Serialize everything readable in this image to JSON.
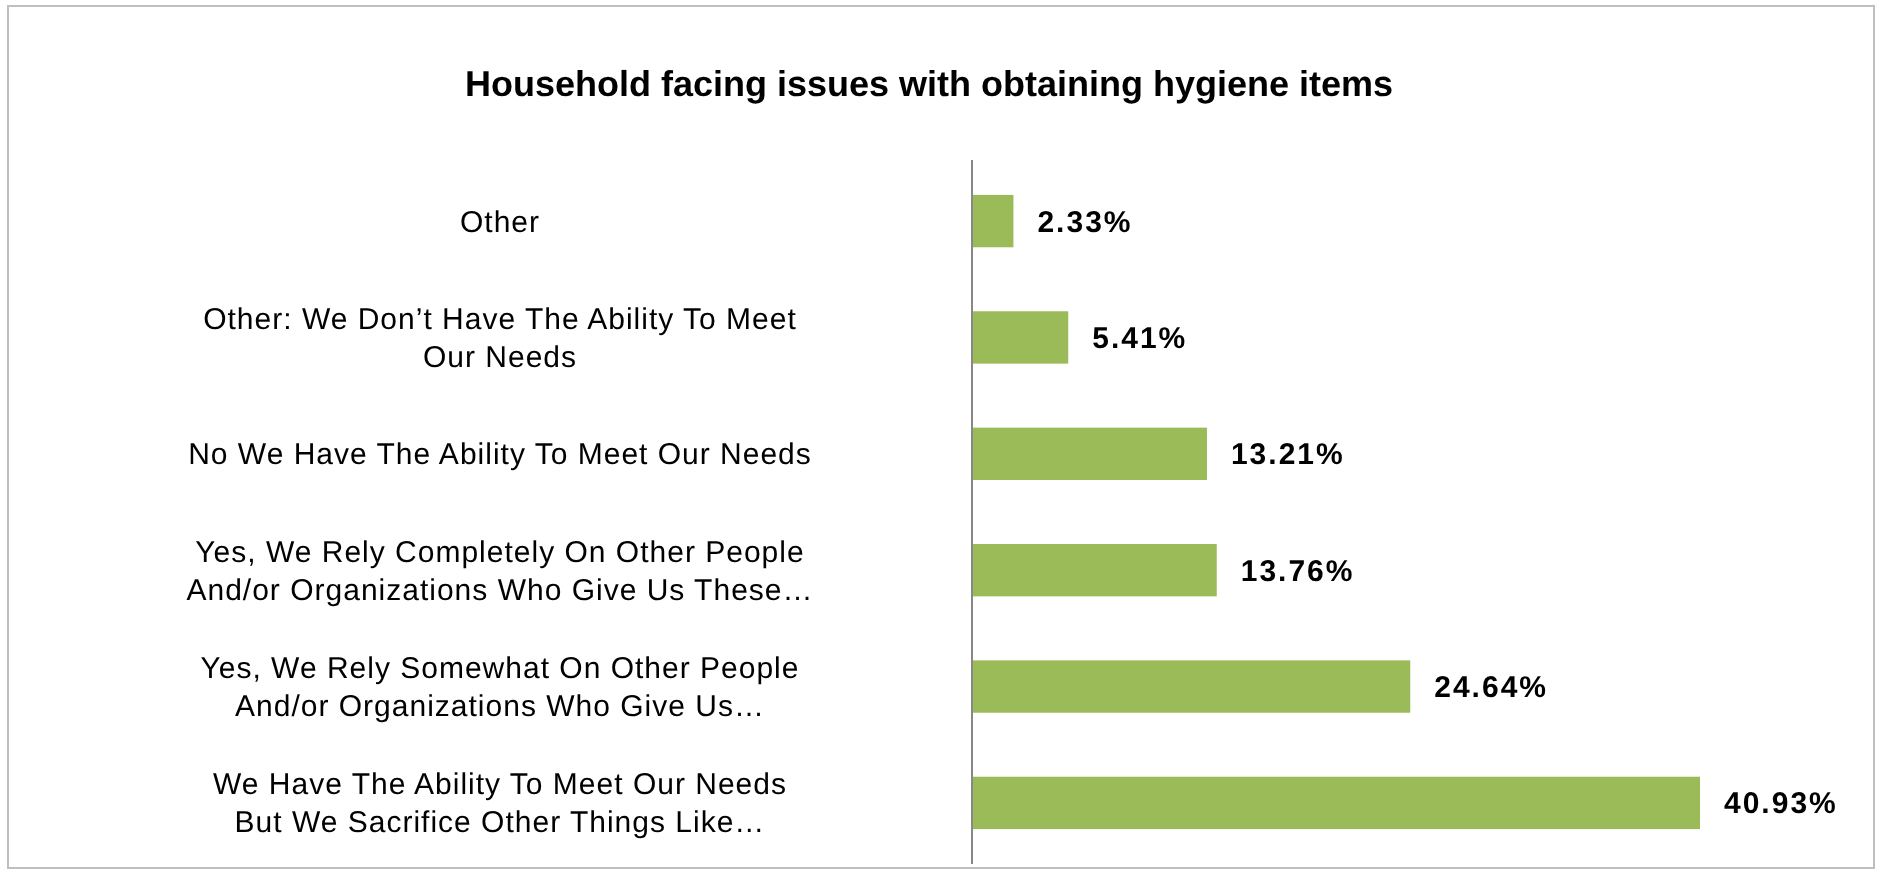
{
  "chart_data": {
    "type": "bar",
    "orientation": "horizontal",
    "relative": false,
    "title": "Household facing issues with obtaining hygiene items",
    "categories": [
      "Other",
      "Other: We Don’t Have The Ability To Meet Our Needs",
      "No We Have The Ability To Meet Our Needs",
      "Yes, We Rely Completely On Other People And/or Organizations Who Give Us These…",
      "Yes, We Rely Somewhat On Other People And/or Organizations Who Give Us…",
      "We Have The Ability To Meet Our Needs But We Sacrifice Other Things Like…"
    ],
    "values": [
      2.33,
      5.41,
      13.21,
      13.76,
      24.64,
      40.93
    ],
    "value_labels": [
      "2.33%",
      "5.41%",
      "13.21%",
      "13.76%",
      "24.64%",
      "40.93%"
    ],
    "color": "#9bbb59"
  }
}
